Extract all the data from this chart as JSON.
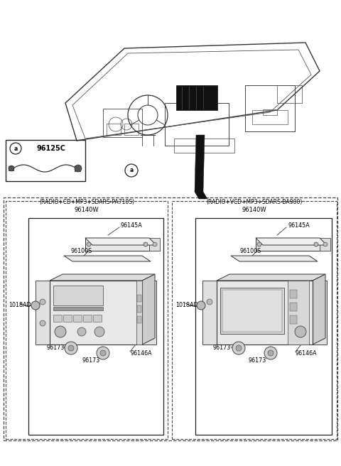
{
  "bg_color": "#ffffff",
  "text_color": "#000000",
  "line_color": "#222222",
  "dashed_color": "#444444",
  "part_a_code": "96125C",
  "left_panel_title": "(RADIO+CD+MP3+SDARS-PA710S)",
  "right_panel_title": "(RADIO+VCD+MP3+SDARS-BA900)",
  "left_panel_code": "96140W",
  "right_panel_code": "96140W"
}
